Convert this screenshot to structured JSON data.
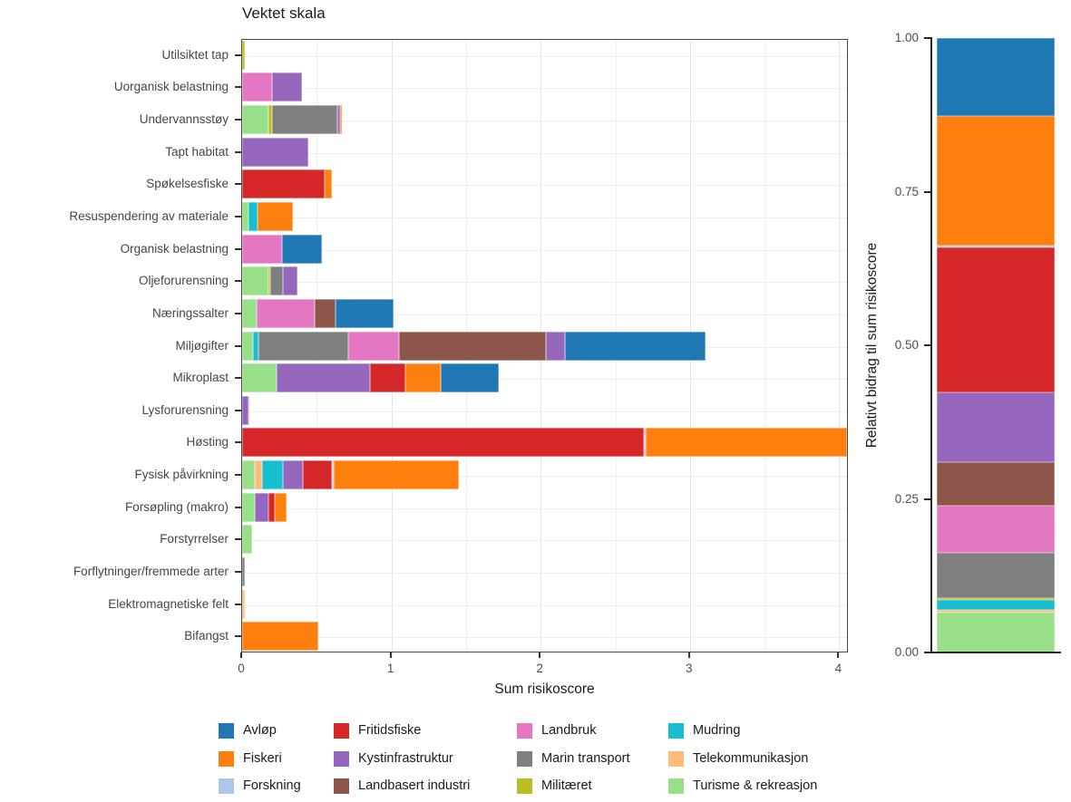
{
  "chart_data": {
    "type": "bar",
    "orientation": "horizontal-stacked",
    "title": "Vektet skala",
    "xlabel": "Sum risikoscore",
    "xlim": [
      0,
      4.065
    ],
    "x_ticks": [
      0,
      1,
      2,
      3,
      4
    ],
    "x_tick_labels": [
      "0",
      "1",
      "2",
      "3",
      "4"
    ],
    "x_minor_gridlines": [
      0.5,
      1.5,
      2.5,
      3.5
    ],
    "grid": true,
    "legend_position": "bottom",
    "sector_colors": {
      "Avløp": "#1f77b4",
      "Fiskeri": "#ff7f0e",
      "Forskning": "#aec7e8",
      "Fritidsfiske": "#d62728",
      "Kystinfrastruktur": "#9467bd",
      "Landbasert industri": "#8c564b",
      "Landbruk": "#e377c2",
      "Marin transport": "#7f7f7f",
      "Militæret": "#bcbd22",
      "Mudring": "#17becf",
      "Telekommunikasjon": "#ffbb78",
      "Turisme & rekreasjon": "#98df8a"
    },
    "rows": [
      {
        "category": "Utilsiktet tap",
        "segments": [
          {
            "sector": "Militæret",
            "value": 0.02
          }
        ]
      },
      {
        "category": "Uorganisk belastning",
        "segments": [
          {
            "sector": "Landbruk",
            "value": 0.2
          },
          {
            "sector": "Kystinfrastruktur",
            "value": 0.2
          }
        ]
      },
      {
        "category": "Undervannsstøy",
        "segments": [
          {
            "sector": "Turisme & rekreasjon",
            "value": 0.175
          },
          {
            "sector": "Militæret",
            "value": 0.025
          },
          {
            "sector": "Marin transport",
            "value": 0.44
          },
          {
            "sector": "Kystinfrastruktur",
            "value": 0.015
          },
          {
            "sector": "Fiskeri",
            "value": 0.015
          }
        ]
      },
      {
        "category": "Tapt habitat",
        "segments": [
          {
            "sector": "Kystinfrastruktur",
            "value": 0.445
          }
        ]
      },
      {
        "category": "Spøkelsesfiske",
        "segments": [
          {
            "sector": "Fritidsfiske",
            "value": 0.555
          },
          {
            "sector": "Fiskeri",
            "value": 0.045
          }
        ]
      },
      {
        "category": "Resuspendering av materiale",
        "segments": [
          {
            "sector": "Turisme & rekreasjon",
            "value": 0.04
          },
          {
            "sector": "Mudring",
            "value": 0.065
          },
          {
            "sector": "Fiskeri",
            "value": 0.235
          }
        ]
      },
      {
        "category": "Organisk belastning",
        "segments": [
          {
            "sector": "Landbruk",
            "value": 0.27
          },
          {
            "sector": "Avløp",
            "value": 0.265
          }
        ]
      },
      {
        "category": "Oljeforurensning",
        "segments": [
          {
            "sector": "Turisme & rekreasjon",
            "value": 0.175
          },
          {
            "sector": "Militæret",
            "value": 0.012
          },
          {
            "sector": "Marin transport",
            "value": 0.085
          },
          {
            "sector": "Kystinfrastruktur",
            "value": 0.1
          }
        ]
      },
      {
        "category": "Næringssalter",
        "segments": [
          {
            "sector": "Turisme & rekreasjon",
            "value": 0.095
          },
          {
            "sector": "Landbruk",
            "value": 0.39
          },
          {
            "sector": "Landbasert industri",
            "value": 0.14
          },
          {
            "sector": "Avløp",
            "value": 0.39
          }
        ]
      },
      {
        "category": "Miljøgifter",
        "segments": [
          {
            "sector": "Turisme & rekreasjon",
            "value": 0.075
          },
          {
            "sector": "Mudring",
            "value": 0.035
          },
          {
            "sector": "Marin transport",
            "value": 0.6
          },
          {
            "sector": "Landbruk",
            "value": 0.34
          },
          {
            "sector": "Landbasert industri",
            "value": 0.985
          },
          {
            "sector": "Kystinfrastruktur",
            "value": 0.125
          },
          {
            "sector": "Avløp",
            "value": 0.945
          }
        ]
      },
      {
        "category": "Mikroplast",
        "segments": [
          {
            "sector": "Turisme & rekreasjon",
            "value": 0.23
          },
          {
            "sector": "Kystinfrastruktur",
            "value": 0.625
          },
          {
            "sector": "Fritidsfiske",
            "value": 0.24
          },
          {
            "sector": "Fiskeri",
            "value": 0.235
          },
          {
            "sector": "Avløp",
            "value": 0.39
          }
        ]
      },
      {
        "category": "Lysforurensning",
        "segments": [
          {
            "sector": "Kystinfrastruktur",
            "value": 0.04
          },
          {
            "sector": "Fiskeri",
            "value": 0.01
          }
        ]
      },
      {
        "category": "Høsting",
        "segments": [
          {
            "sector": "Fritidsfiske",
            "value": 2.69
          },
          {
            "sector": "Forskning",
            "value": 0.015
          },
          {
            "sector": "Fiskeri",
            "value": 1.35
          }
        ]
      },
      {
        "category": "Fysisk påvirkning",
        "segments": [
          {
            "sector": "Turisme & rekreasjon",
            "value": 0.085
          },
          {
            "sector": "Telekommunikasjon",
            "value": 0.05
          },
          {
            "sector": "Mudring",
            "value": 0.14
          },
          {
            "sector": "Kystinfrastruktur",
            "value": 0.135
          },
          {
            "sector": "Fritidsfiske",
            "value": 0.19
          },
          {
            "sector": "Forskning",
            "value": 0.012
          },
          {
            "sector": "Fiskeri",
            "value": 0.84
          }
        ]
      },
      {
        "category": "Forsøpling (makro)",
        "segments": [
          {
            "sector": "Turisme & rekreasjon",
            "value": 0.085
          },
          {
            "sector": "Kystinfrastruktur",
            "value": 0.09
          },
          {
            "sector": "Fritidsfiske",
            "value": 0.045
          },
          {
            "sector": "Fiskeri",
            "value": 0.08
          }
        ]
      },
      {
        "category": "Forstyrrelser",
        "segments": [
          {
            "sector": "Turisme & rekreasjon",
            "value": 0.065
          }
        ]
      },
      {
        "category": "Forflytninger/fremmede arter",
        "segments": [
          {
            "sector": "Marin transport",
            "value": 0.02
          }
        ]
      },
      {
        "category": "Elektromagnetiske felt",
        "segments": [
          {
            "sector": "Telekommunikasjon",
            "value": 0.02
          }
        ]
      },
      {
        "category": "Bifangst",
        "segments": [
          {
            "sector": "Fiskeri",
            "value": 0.51
          }
        ]
      }
    ],
    "relative_panel": {
      "ylabel": "Relativt bidrag til sum risikoscore",
      "y_ticks": [
        1.0,
        0.75,
        0.5,
        0.25,
        0.0
      ],
      "y_tick_labels": [
        "1.00",
        "0.75",
        "0.50",
        "0.25",
        "0.00"
      ],
      "ylim": [
        0,
        1
      ],
      "segments_bottom_to_top": [
        {
          "sector": "Turisme & rekreasjon",
          "fraction": 0.065
        },
        {
          "sector": "Telekommunikasjon",
          "fraction": 0.0045
        },
        {
          "sector": "Mudring",
          "fraction": 0.0155
        },
        {
          "sector": "Militæret",
          "fraction": 0.004
        },
        {
          "sector": "Marin transport",
          "fraction": 0.073
        },
        {
          "sector": "Landbruk",
          "fraction": 0.0765
        },
        {
          "sector": "Landbasert industri",
          "fraction": 0.0715
        },
        {
          "sector": "Kystinfrastruktur",
          "fraction": 0.113
        },
        {
          "sector": "Fritidsfiske",
          "fraction": 0.237
        },
        {
          "sector": "Forskning",
          "fraction": 0.002
        },
        {
          "sector": "Fiskeri",
          "fraction": 0.2115
        },
        {
          "sector": "Avløp",
          "fraction": 0.1265
        }
      ]
    },
    "legend_columns": [
      [
        "Avløp",
        "Fiskeri",
        "Forskning"
      ],
      [
        "Fritidsfiske",
        "Kystinfrastruktur",
        "Landbasert industri"
      ],
      [
        "Landbruk",
        "Marin transport",
        "Militæret"
      ],
      [
        "Mudring",
        "Telekommunikasjon",
        "Turisme & rekreasjon"
      ]
    ]
  }
}
